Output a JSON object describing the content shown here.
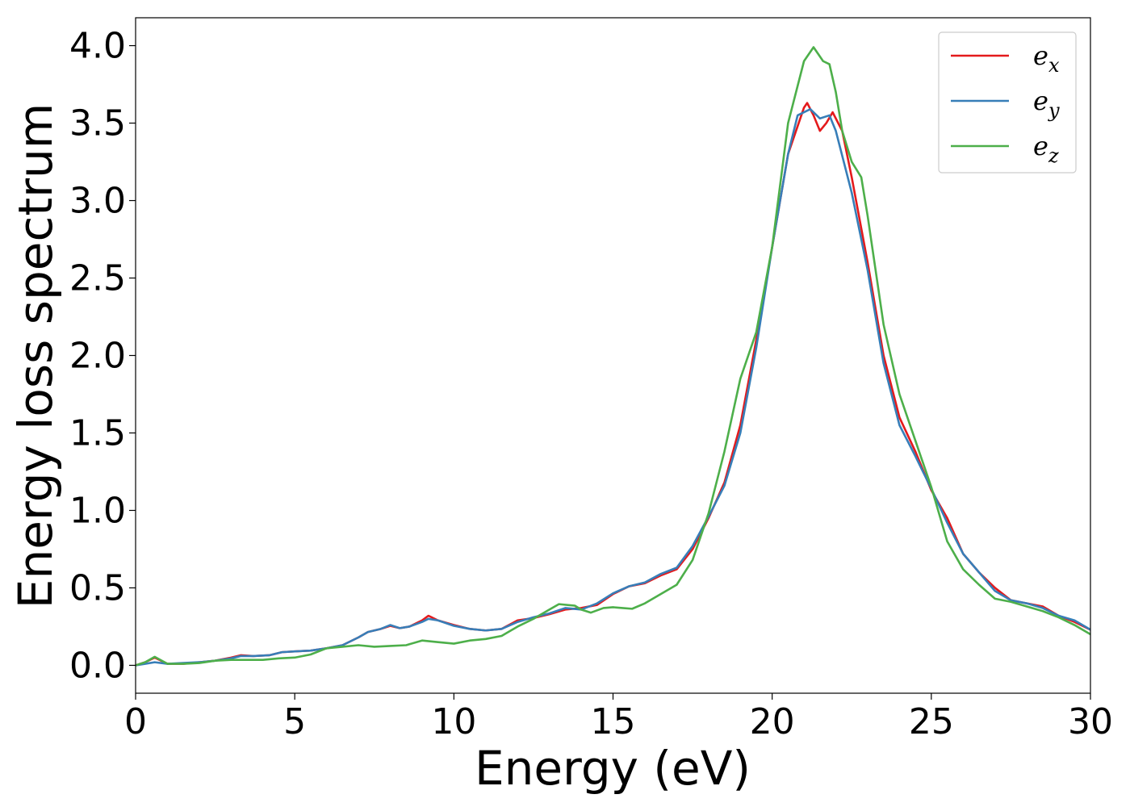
{
  "chart_data": {
    "type": "line",
    "xlabel": "Energy (eV)",
    "ylabel": "Energy loss spectrum",
    "xlim": [
      0,
      30
    ],
    "ylim": [
      -0.18,
      4.18
    ],
    "x_ticks": [
      0,
      5,
      10,
      15,
      20,
      25,
      30
    ],
    "x_tick_labels": [
      "0",
      "5",
      "10",
      "15",
      "20",
      "25",
      "30"
    ],
    "y_ticks": [
      0.0,
      0.5,
      1.0,
      1.5,
      2.0,
      2.5,
      3.0,
      3.5,
      4.0
    ],
    "y_tick_labels": [
      "0.0",
      "0.5",
      "1.0",
      "1.5",
      "2.0",
      "2.5",
      "3.0",
      "3.5",
      "4.0"
    ],
    "grid": false,
    "legend_position": "top-right",
    "series": [
      {
        "name": "e_x",
        "legend_main": "e",
        "legend_sub": "x",
        "color": "#e41a1c",
        "points": [
          [
            0,
            0.0
          ],
          [
            0.3,
            0.02
          ],
          [
            0.6,
            0.05
          ],
          [
            1.0,
            0.01
          ],
          [
            1.5,
            0.01
          ],
          [
            2.0,
            0.02
          ],
          [
            2.5,
            0.03
          ],
          [
            3.0,
            0.05
          ],
          [
            3.3,
            0.065
          ],
          [
            3.7,
            0.06
          ],
          [
            4.2,
            0.065
          ],
          [
            4.6,
            0.085
          ],
          [
            5.0,
            0.09
          ],
          [
            5.5,
            0.095
          ],
          [
            6.0,
            0.11
          ],
          [
            6.5,
            0.13
          ],
          [
            7.0,
            0.18
          ],
          [
            7.3,
            0.215
          ],
          [
            7.7,
            0.235
          ],
          [
            8.0,
            0.255
          ],
          [
            8.3,
            0.24
          ],
          [
            8.6,
            0.25
          ],
          [
            9.0,
            0.29
          ],
          [
            9.2,
            0.32
          ],
          [
            9.5,
            0.29
          ],
          [
            10.0,
            0.26
          ],
          [
            10.5,
            0.235
          ],
          [
            11.0,
            0.225
          ],
          [
            11.5,
            0.235
          ],
          [
            12.0,
            0.29
          ],
          [
            12.5,
            0.305
          ],
          [
            13.0,
            0.33
          ],
          [
            13.5,
            0.36
          ],
          [
            14.0,
            0.37
          ],
          [
            14.5,
            0.39
          ],
          [
            15.0,
            0.46
          ],
          [
            15.5,
            0.51
          ],
          [
            16.0,
            0.53
          ],
          [
            16.5,
            0.58
          ],
          [
            17.0,
            0.62
          ],
          [
            17.5,
            0.75
          ],
          [
            18.0,
            0.95
          ],
          [
            18.5,
            1.18
          ],
          [
            19.0,
            1.55
          ],
          [
            19.5,
            2.1
          ],
          [
            20.0,
            2.7
          ],
          [
            20.5,
            3.3
          ],
          [
            21.0,
            3.6
          ],
          [
            21.1,
            3.63
          ],
          [
            21.3,
            3.55
          ],
          [
            21.5,
            3.45
          ],
          [
            21.7,
            3.5
          ],
          [
            21.9,
            3.57
          ],
          [
            22.2,
            3.45
          ],
          [
            22.5,
            3.15
          ],
          [
            23.0,
            2.6
          ],
          [
            23.5,
            2.0
          ],
          [
            24.0,
            1.6
          ],
          [
            24.5,
            1.38
          ],
          [
            25.0,
            1.13
          ],
          [
            25.5,
            0.95
          ],
          [
            26.0,
            0.72
          ],
          [
            26.5,
            0.6
          ],
          [
            27.0,
            0.5
          ],
          [
            27.5,
            0.42
          ],
          [
            28.0,
            0.4
          ],
          [
            28.5,
            0.38
          ],
          [
            29.0,
            0.32
          ],
          [
            29.5,
            0.28
          ],
          [
            30.0,
            0.23
          ]
        ]
      },
      {
        "name": "e_y",
        "legend_main": "e",
        "legend_sub": "y",
        "color": "#377eb8",
        "points": [
          [
            0,
            0.0
          ],
          [
            0.3,
            0.01
          ],
          [
            0.6,
            0.02
          ],
          [
            1.0,
            0.01
          ],
          [
            1.5,
            0.015
          ],
          [
            2.0,
            0.02
          ],
          [
            2.5,
            0.03
          ],
          [
            3.0,
            0.045
          ],
          [
            3.3,
            0.06
          ],
          [
            3.7,
            0.06
          ],
          [
            4.2,
            0.065
          ],
          [
            4.6,
            0.085
          ],
          [
            5.0,
            0.09
          ],
          [
            5.5,
            0.095
          ],
          [
            6.0,
            0.11
          ],
          [
            6.5,
            0.13
          ],
          [
            7.0,
            0.18
          ],
          [
            7.3,
            0.215
          ],
          [
            7.7,
            0.235
          ],
          [
            8.0,
            0.26
          ],
          [
            8.3,
            0.24
          ],
          [
            8.6,
            0.25
          ],
          [
            9.0,
            0.28
          ],
          [
            9.2,
            0.3
          ],
          [
            9.5,
            0.29
          ],
          [
            10.0,
            0.255
          ],
          [
            10.5,
            0.235
          ],
          [
            11.0,
            0.225
          ],
          [
            11.5,
            0.235
          ],
          [
            12.0,
            0.28
          ],
          [
            12.5,
            0.31
          ],
          [
            13.0,
            0.335
          ],
          [
            13.5,
            0.37
          ],
          [
            14.0,
            0.36
          ],
          [
            14.5,
            0.4
          ],
          [
            15.0,
            0.465
          ],
          [
            15.5,
            0.51
          ],
          [
            16.0,
            0.535
          ],
          [
            16.5,
            0.59
          ],
          [
            17.0,
            0.63
          ],
          [
            17.5,
            0.77
          ],
          [
            18.0,
            0.96
          ],
          [
            18.5,
            1.16
          ],
          [
            19.0,
            1.5
          ],
          [
            19.5,
            2.05
          ],
          [
            20.0,
            2.7
          ],
          [
            20.5,
            3.3
          ],
          [
            20.8,
            3.55
          ],
          [
            21.0,
            3.57
          ],
          [
            21.2,
            3.59
          ],
          [
            21.5,
            3.53
          ],
          [
            21.8,
            3.55
          ],
          [
            22.0,
            3.45
          ],
          [
            22.5,
            3.05
          ],
          [
            23.0,
            2.55
          ],
          [
            23.5,
            1.95
          ],
          [
            24.0,
            1.55
          ],
          [
            24.5,
            1.35
          ],
          [
            25.0,
            1.14
          ],
          [
            25.5,
            0.92
          ],
          [
            26.0,
            0.72
          ],
          [
            26.5,
            0.6
          ],
          [
            27.0,
            0.48
          ],
          [
            27.5,
            0.42
          ],
          [
            28.0,
            0.4
          ],
          [
            28.5,
            0.37
          ],
          [
            29.0,
            0.32
          ],
          [
            29.5,
            0.29
          ],
          [
            30.0,
            0.23
          ]
        ]
      },
      {
        "name": "e_z",
        "legend_main": "e",
        "legend_sub": "z",
        "color": "#4daf4a",
        "points": [
          [
            0,
            0.0
          ],
          [
            0.3,
            0.02
          ],
          [
            0.6,
            0.055
          ],
          [
            1.0,
            0.01
          ],
          [
            1.5,
            0.01
          ],
          [
            2.0,
            0.015
          ],
          [
            2.5,
            0.03
          ],
          [
            3.0,
            0.035
          ],
          [
            3.5,
            0.035
          ],
          [
            4.0,
            0.035
          ],
          [
            4.5,
            0.045
          ],
          [
            5.0,
            0.05
          ],
          [
            5.5,
            0.07
          ],
          [
            6.0,
            0.11
          ],
          [
            6.5,
            0.12
          ],
          [
            7.0,
            0.13
          ],
          [
            7.5,
            0.12
          ],
          [
            8.0,
            0.125
          ],
          [
            8.5,
            0.13
          ],
          [
            9.0,
            0.16
          ],
          [
            9.5,
            0.15
          ],
          [
            10.0,
            0.14
          ],
          [
            10.5,
            0.16
          ],
          [
            11.0,
            0.17
          ],
          [
            11.5,
            0.19
          ],
          [
            12.0,
            0.25
          ],
          [
            12.5,
            0.3
          ],
          [
            13.0,
            0.36
          ],
          [
            13.3,
            0.395
          ],
          [
            13.8,
            0.385
          ],
          [
            14.0,
            0.36
          ],
          [
            14.3,
            0.34
          ],
          [
            14.7,
            0.37
          ],
          [
            15.0,
            0.375
          ],
          [
            15.3,
            0.37
          ],
          [
            15.6,
            0.365
          ],
          [
            16.0,
            0.4
          ],
          [
            16.5,
            0.46
          ],
          [
            17.0,
            0.52
          ],
          [
            17.5,
            0.68
          ],
          [
            18.0,
            0.98
          ],
          [
            18.5,
            1.38
          ],
          [
            19.0,
            1.85
          ],
          [
            19.5,
            2.15
          ],
          [
            20.0,
            2.7
          ],
          [
            20.5,
            3.5
          ],
          [
            21.0,
            3.9
          ],
          [
            21.3,
            3.99
          ],
          [
            21.6,
            3.9
          ],
          [
            21.8,
            3.88
          ],
          [
            22.0,
            3.7
          ],
          [
            22.2,
            3.45
          ],
          [
            22.5,
            3.25
          ],
          [
            22.8,
            3.15
          ],
          [
            23.0,
            2.9
          ],
          [
            23.5,
            2.2
          ],
          [
            24.0,
            1.75
          ],
          [
            24.5,
            1.45
          ],
          [
            25.0,
            1.15
          ],
          [
            25.5,
            0.8
          ],
          [
            26.0,
            0.62
          ],
          [
            26.5,
            0.52
          ],
          [
            27.0,
            0.43
          ],
          [
            27.5,
            0.41
          ],
          [
            28.0,
            0.38
          ],
          [
            28.5,
            0.35
          ],
          [
            29.0,
            0.31
          ],
          [
            29.5,
            0.26
          ],
          [
            30.0,
            0.2
          ]
        ]
      }
    ]
  }
}
